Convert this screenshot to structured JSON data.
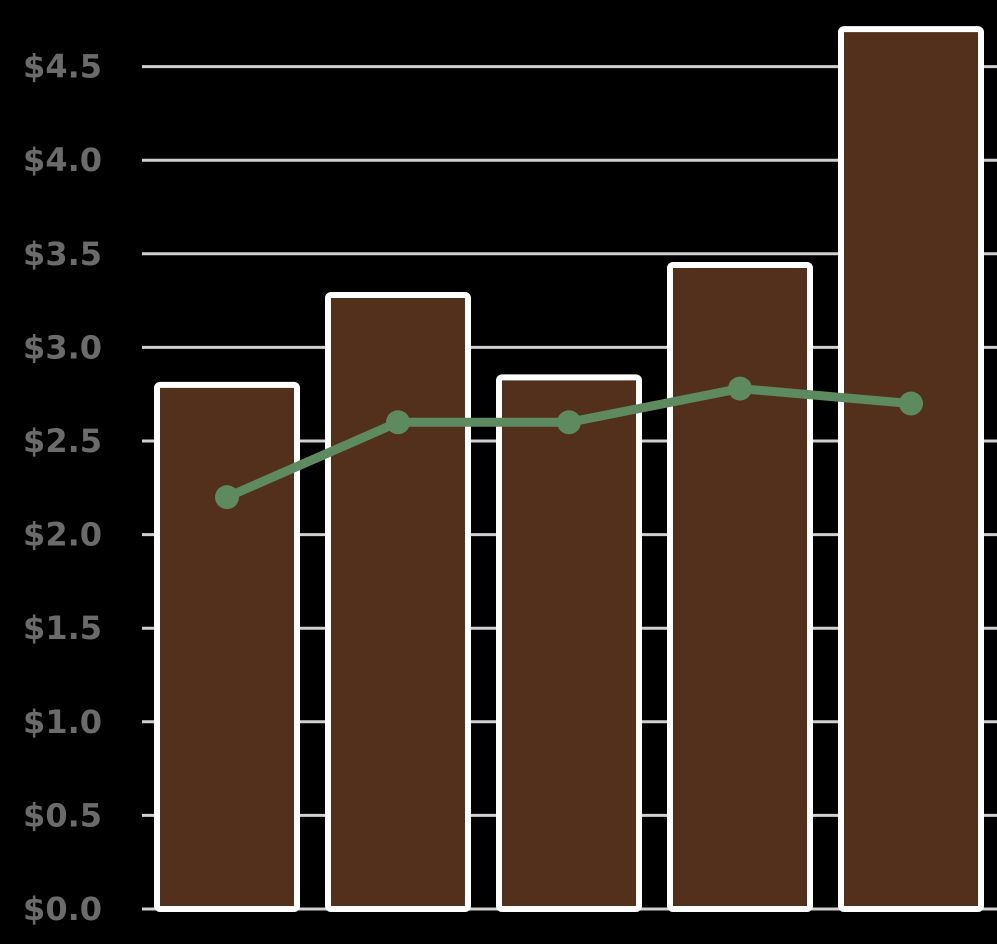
{
  "chart_data": {
    "type": "bar",
    "categories": [
      "",
      "",
      "",
      "",
      ""
    ],
    "ylim": [
      0,
      4.7
    ],
    "y_ticks": [
      "$0.0",
      "$0.5",
      "$1.0",
      "$1.5",
      "$2.0",
      "$2.5",
      "$3.0",
      "$3.5",
      "$4.0",
      "$4.5"
    ],
    "y_tick_values": [
      0,
      0.5,
      1.0,
      1.5,
      2.0,
      2.5,
      3.0,
      3.5,
      4.0,
      4.5
    ],
    "grid": "horizontal",
    "legend": "none",
    "series": [
      {
        "type": "bar",
        "values": [
          2.8,
          3.28,
          2.84,
          3.44,
          4.7
        ]
      },
      {
        "type": "line",
        "values": [
          2.2,
          2.6,
          2.6,
          2.78,
          2.7
        ]
      }
    ],
    "colors": {
      "background": "#000000",
      "bar_fill": "#52301c",
      "bar_stroke": "#ffffff",
      "line": "#5e8a60",
      "grid": "#d0d0d0",
      "tick_text": "#6b6b6b"
    }
  }
}
